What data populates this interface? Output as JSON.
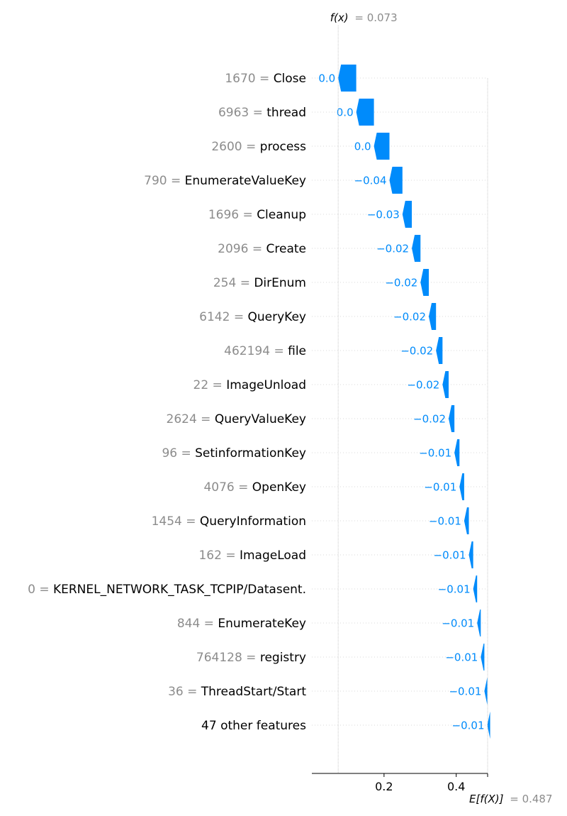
{
  "chart_data": {
    "type": "waterfall",
    "fx_label": "f(x)",
    "fx_value_text": "= 0.073",
    "fx_value": 0.073,
    "base_label": "E[f(X)]",
    "base_value_text": "= 0.487",
    "base_value": 0.487,
    "xlim": [
      0.0,
      0.487
    ],
    "x_ticks": [
      {
        "value": 0.2,
        "label": "0.2"
      },
      {
        "value": 0.4,
        "label": "0.4"
      }
    ],
    "features": [
      {
        "value": "1670 =",
        "name": "Close",
        "shap": -0.05,
        "label": "0.0"
      },
      {
        "value": "6963 =",
        "name": "thread",
        "shap": -0.049,
        "label": "0.0"
      },
      {
        "value": "2600 =",
        "name": "process",
        "shap": -0.043,
        "label": "0.0"
      },
      {
        "value": "790 =",
        "name": "EnumerateValueKey",
        "shap": -0.036,
        "label": "−0.04"
      },
      {
        "value": "1696 =",
        "name": "Cleanup",
        "shap": -0.026,
        "label": "−0.03"
      },
      {
        "value": "2096 =",
        "name": "Create",
        "shap": -0.024,
        "label": "−0.02"
      },
      {
        "value": "254 =",
        "name": "DirEnum",
        "shap": -0.023,
        "label": "−0.02"
      },
      {
        "value": "6142 =",
        "name": "QueryKey",
        "shap": -0.02,
        "label": "−0.02"
      },
      {
        "value": "462194 =",
        "name": "file",
        "shap": -0.018,
        "label": "−0.02"
      },
      {
        "value": "22 =",
        "name": "ImageUnload",
        "shap": -0.017,
        "label": "−0.02"
      },
      {
        "value": "2624 =",
        "name": "QueryValueKey",
        "shap": -0.016,
        "label": "−0.02"
      },
      {
        "value": "96 =",
        "name": "SetinformationKey",
        "shap": -0.014,
        "label": "−0.01"
      },
      {
        "value": "4076 =",
        "name": "OpenKey",
        "shap": -0.013,
        "label": "−0.01"
      },
      {
        "value": "1454 =",
        "name": "QueryInformation",
        "shap": -0.013,
        "label": "−0.01"
      },
      {
        "value": "162 =",
        "name": "ImageLoad",
        "shap": -0.012,
        "label": "−0.01"
      },
      {
        "value": "0 =",
        "name": "KERNEL_NETWORK_TASK_TCPIP/Datasent.",
        "shap": -0.011,
        "label": "−0.01"
      },
      {
        "value": "844 =",
        "name": "EnumerateKey",
        "shap": -0.01,
        "label": "−0.01"
      },
      {
        "value": "764128 =",
        "name": "registry",
        "shap": -0.01,
        "label": "−0.01"
      },
      {
        "value": "36 =",
        "name": "ThreadStart/Start",
        "shap": -0.008,
        "label": "−0.01"
      },
      {
        "value": "",
        "name": "47 other features",
        "shap": -0.008,
        "label": "−0.01"
      }
    ],
    "colors": {
      "negative": "#008bfb",
      "grid": "#d9d9d9",
      "base_line": "#c8c8c8",
      "feature_value_text": "#8c8c8c",
      "annotation_text": "#8c8c8c"
    }
  }
}
